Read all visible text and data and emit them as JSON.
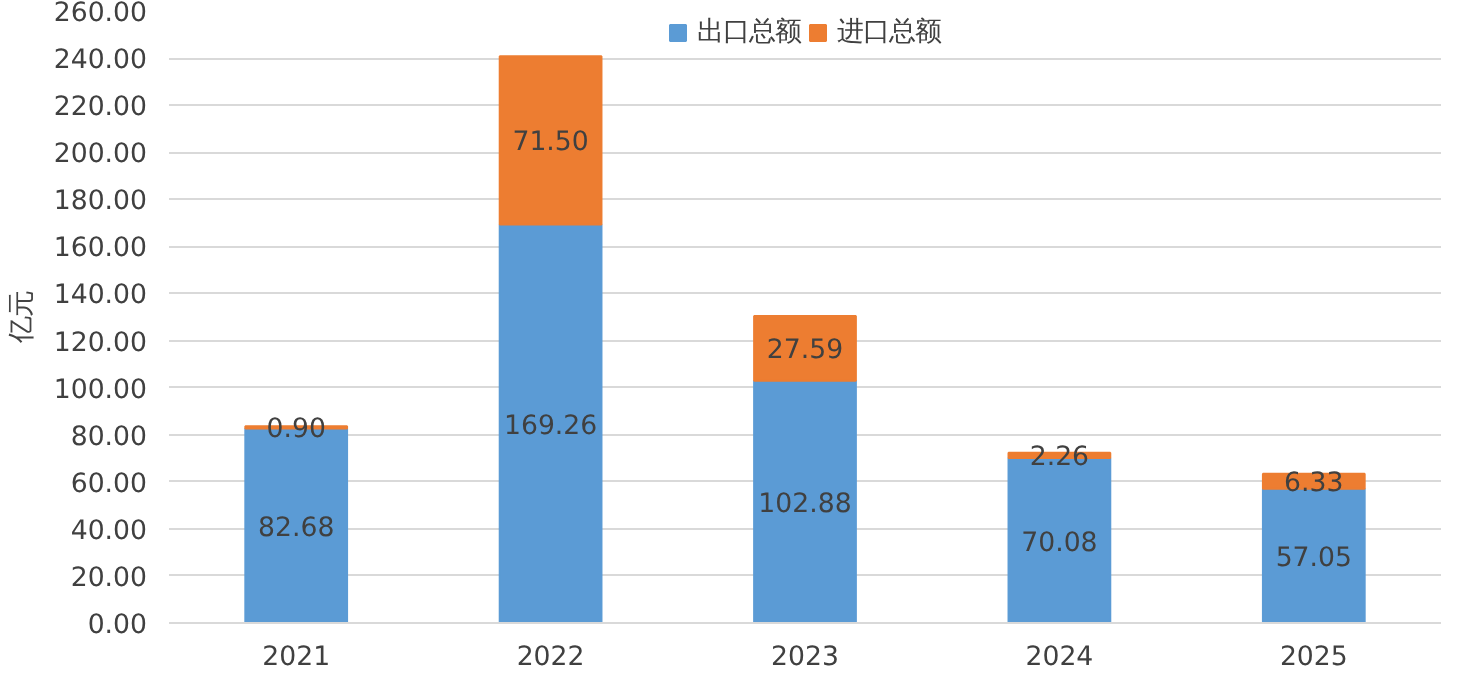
{
  "chart_data": {
    "type": "bar",
    "stacked": true,
    "ylabel": "亿元",
    "categories": [
      "2021",
      "2022",
      "2023",
      "2024",
      "2025"
    ],
    "series": [
      {
        "name": "出口总额",
        "color": "#5b9bd5",
        "values": [
          82.68,
          169.26,
          102.88,
          70.08,
          57.05
        ],
        "value_labels": [
          "82.68",
          "169.26",
          "102.88",
          "70.08",
          "57.05"
        ]
      },
      {
        "name": "进口总额",
        "color": "#ed7d31",
        "values": [
          0.9,
          71.5,
          27.59,
          2.26,
          6.33
        ],
        "value_labels": [
          "0.90",
          "71.50",
          "27.59",
          "2.26",
          "6.33"
        ]
      }
    ],
    "ylim": [
      0,
      260
    ],
    "yticks": [
      {
        "value": 0,
        "label": "0.00"
      },
      {
        "value": 20,
        "label": "20.00"
      },
      {
        "value": 40,
        "label": "40.00"
      },
      {
        "value": 60,
        "label": "60.00"
      },
      {
        "value": 80,
        "label": "80.00"
      },
      {
        "value": 100,
        "label": "100.00"
      },
      {
        "value": 120,
        "label": "120.00"
      },
      {
        "value": 140,
        "label": "140.00"
      },
      {
        "value": 160,
        "label": "160.00"
      },
      {
        "value": 180,
        "label": "180.00"
      },
      {
        "value": 200,
        "label": "200.00"
      },
      {
        "value": 220,
        "label": "220.00"
      },
      {
        "value": 240,
        "label": "240.00"
      },
      {
        "value": 260,
        "label": "260.00"
      }
    ],
    "grid": "y",
    "legend": "top"
  }
}
